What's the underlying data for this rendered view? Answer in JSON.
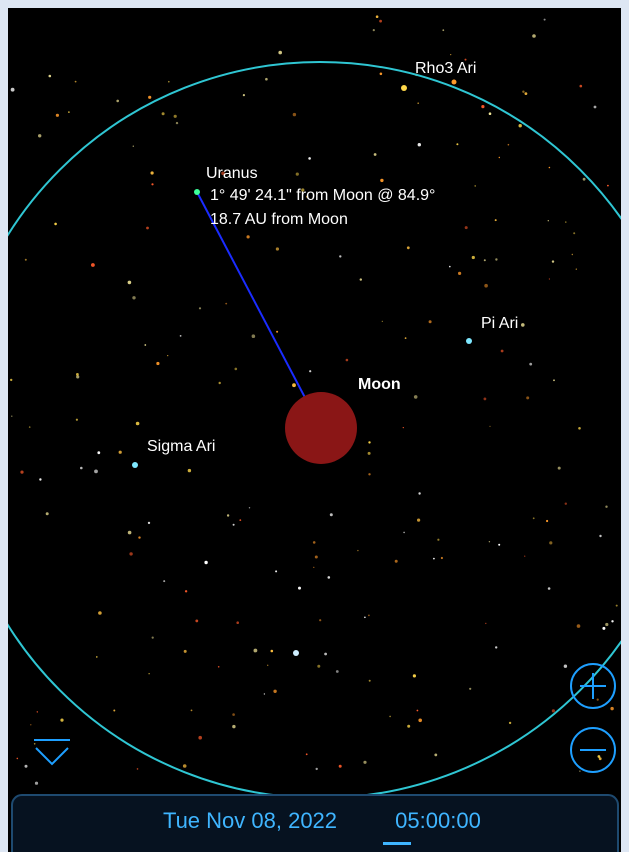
{
  "sky": {
    "stars": {
      "rho3": "Rho3 Ari",
      "pi": "Pi Ari",
      "sigma": "Sigma Ari"
    },
    "moon": "Moon",
    "uranus": {
      "name": "Uranus",
      "separation": "1° 49' 24.1\" from Moon @ 84.9°",
      "distance": "18.7 AU from Moon"
    }
  },
  "footer": {
    "date": "Tue Nov 08, 2022",
    "time": "05:00:00"
  }
}
